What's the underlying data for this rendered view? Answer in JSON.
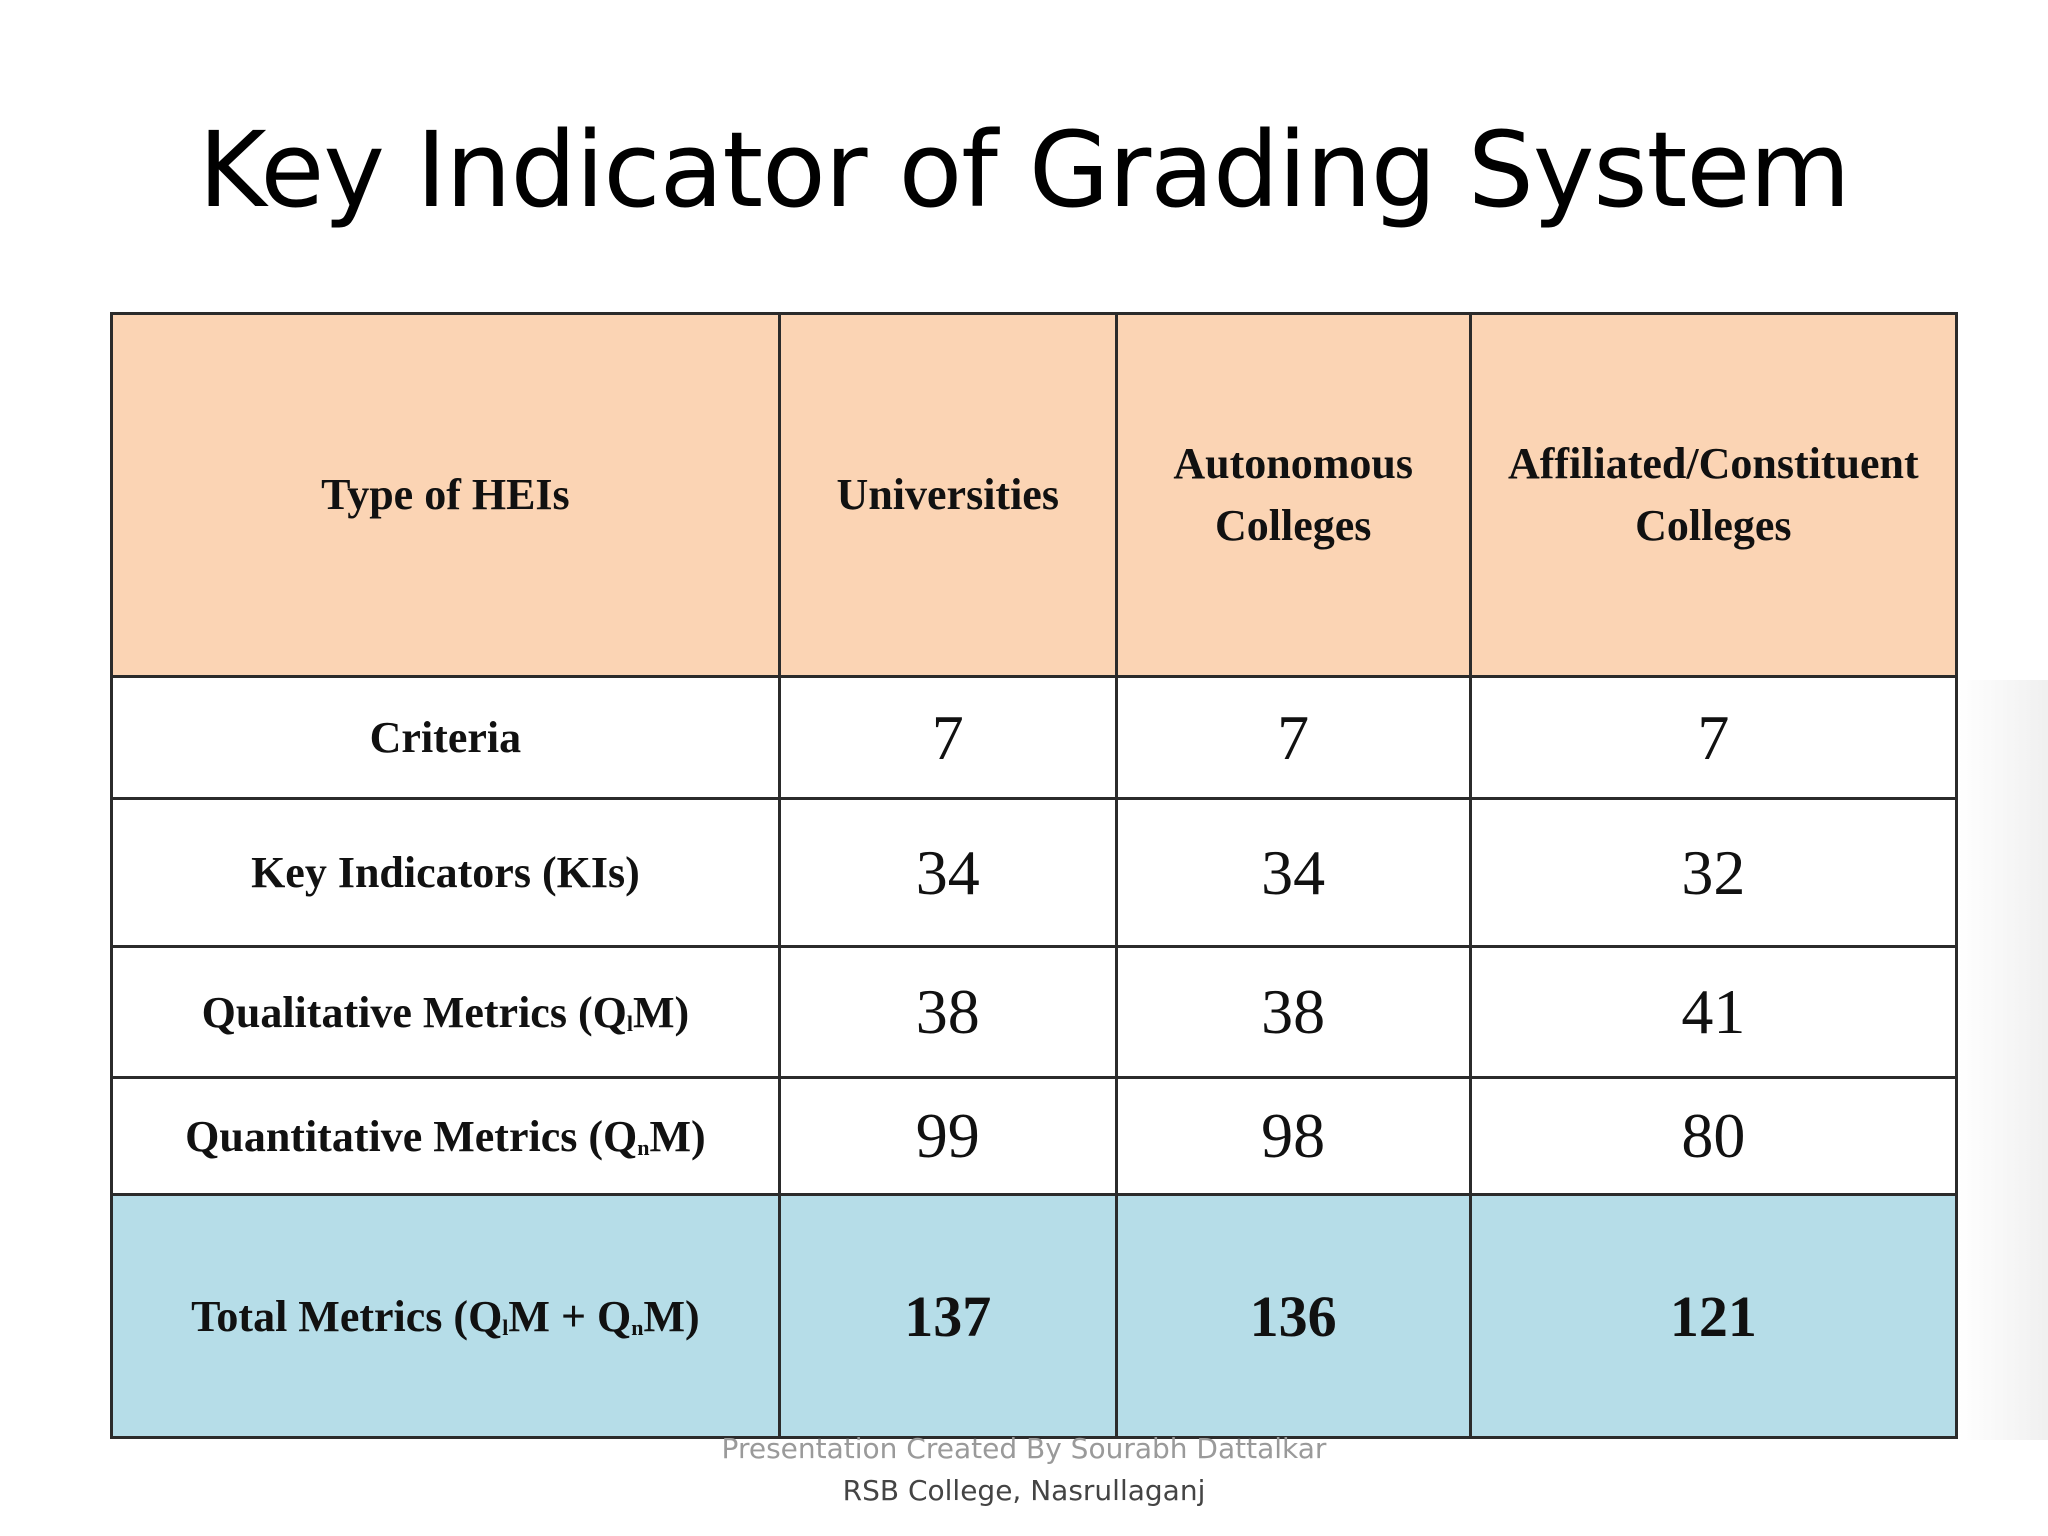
{
  "title": "Key Indicator of Grading System",
  "table": {
    "header": {
      "col1": "Type of HEIs",
      "col2": "Universities",
      "col3_line1": "Autonomous",
      "col3_line2": "Colleges",
      "col4_line1": "Affiliated/Constituent",
      "col4_line2": "Colleges"
    },
    "rows": [
      {
        "label": "Criteria",
        "universities": "7",
        "autonomous": "7",
        "affiliated": "7"
      },
      {
        "label": "Key Indicators (KIs)",
        "universities": "34",
        "autonomous": "34",
        "affiliated": "32"
      },
      {
        "label_pre": "Qualitative Metrics (Q",
        "label_sub": "l",
        "label_post": "M)",
        "universities": "38",
        "autonomous": "38",
        "affiliated": "41"
      },
      {
        "label_pre": "Quantitative Metrics (Q",
        "label_sub": "n",
        "label_post": "M)",
        "universities": "99",
        "autonomous": "98",
        "affiliated": "80"
      }
    ],
    "total": {
      "label_pre": "Total Metrics (Q",
      "label_sub1": "l",
      "label_mid": "M + Q",
      "label_sub2": "n",
      "label_post": "M)",
      "universities": "137",
      "autonomous": "136",
      "affiliated": "121"
    },
    "colors": {
      "header_bg": "#fbd4b4",
      "total_bg": "#b6dde8"
    }
  },
  "footer": {
    "line1": "Presentation Created By Sourabh Dattalkar",
    "line2": "RSB College, Nasrullaganj"
  }
}
